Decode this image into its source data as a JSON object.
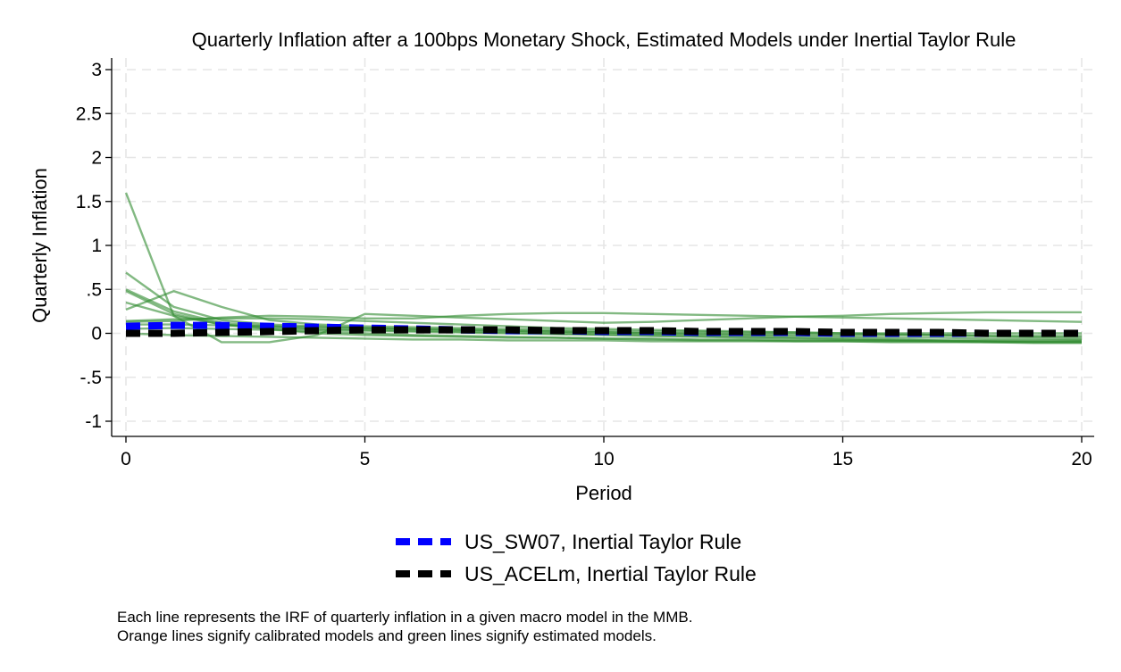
{
  "chart_data": {
    "type": "line",
    "title": "Quarterly Inflation after a 100bps Monetary Shock, Estimated Models under Inertial Taylor Rule",
    "xlabel": "Period",
    "ylabel": "Quarterly Inflation",
    "xlim": [
      0,
      20
    ],
    "ylim": [
      -1,
      3
    ],
    "x_ticks": [
      0,
      5,
      10,
      15,
      20
    ],
    "x_tick_labels": [
      "0",
      "5",
      "10",
      "15",
      "20"
    ],
    "y_ticks": [
      -1,
      -0.5,
      0,
      0.5,
      1,
      1.5,
      2,
      2.5,
      3
    ],
    "y_tick_labels": [
      "-1",
      "-.5",
      "0",
      ".5",
      "1",
      "1.5",
      "2",
      "2.5",
      "3"
    ],
    "grid": true,
    "legend_position": "bottom",
    "x": [
      0,
      1,
      2,
      3,
      4,
      5,
      6,
      7,
      8,
      9,
      10,
      11,
      12,
      13,
      14,
      15,
      16,
      17,
      18,
      19,
      20
    ],
    "background_series_color": "#2e8b2e",
    "background_series": [
      {
        "values": [
          1.6,
          0.2,
          0.1,
          0.05,
          0.0,
          -0.02,
          -0.03,
          -0.04,
          -0.05,
          -0.05,
          -0.06,
          -0.06,
          -0.07,
          -0.07,
          -0.08,
          -0.08,
          -0.08,
          -0.08,
          -0.08,
          -0.08,
          -0.08
        ]
      },
      {
        "values": [
          0.69,
          0.3,
          0.15,
          0.1,
          0.08,
          0.06,
          0.05,
          0.04,
          0.03,
          0.02,
          0.01,
          0.0,
          0.0,
          -0.01,
          -0.01,
          -0.02,
          -0.02,
          -0.02,
          -0.03,
          -0.03,
          -0.03
        ]
      },
      {
        "values": [
          0.5,
          0.25,
          0.12,
          0.08,
          0.05,
          0.04,
          0.03,
          0.02,
          0.01,
          0.0,
          -0.01,
          -0.02,
          -0.03,
          -0.04,
          -0.05,
          -0.06,
          -0.07,
          -0.08,
          -0.09,
          -0.1,
          -0.1
        ]
      },
      {
        "values": [
          0.48,
          0.22,
          0.1,
          0.06,
          0.04,
          0.03,
          0.02,
          0.01,
          0.0,
          -0.01,
          -0.02,
          -0.03,
          -0.04,
          -0.05,
          -0.06,
          -0.07,
          -0.08,
          -0.09,
          -0.1,
          -0.11,
          -0.11
        ]
      },
      {
        "values": [
          0.27,
          0.48,
          0.3,
          0.15,
          0.1,
          0.08,
          0.07,
          0.06,
          0.05,
          0.04,
          0.03,
          0.02,
          0.02,
          0.01,
          0.01,
          0.0,
          0.0,
          0.0,
          0.0,
          0.0,
          0.0
        ]
      },
      {
        "values": [
          0.35,
          0.2,
          -0.1,
          -0.1,
          -0.02,
          0.22,
          0.2,
          0.18,
          0.16,
          0.14,
          0.12,
          0.13,
          0.15,
          0.17,
          0.19,
          0.2,
          0.22,
          0.23,
          0.24,
          0.24,
          0.24
        ]
      },
      {
        "values": [
          0.13,
          0.14,
          0.18,
          0.2,
          0.19,
          0.17,
          0.17,
          0.2,
          0.22,
          0.23,
          0.23,
          0.22,
          0.21,
          0.2,
          0.19,
          0.18,
          0.17,
          0.16,
          0.15,
          0.14,
          0.13
        ]
      },
      {
        "values": [
          0.14,
          0.16,
          0.17,
          0.17,
          0.16,
          0.14,
          0.12,
          0.1,
          0.08,
          0.06,
          0.05,
          0.04,
          0.03,
          0.02,
          0.01,
          0.0,
          -0.01,
          -0.02,
          -0.03,
          -0.04,
          -0.05
        ]
      },
      {
        "values": [
          0.1,
          0.1,
          0.09,
          0.08,
          0.07,
          0.06,
          0.05,
          0.04,
          0.03,
          0.02,
          0.01,
          0.0,
          -0.01,
          -0.02,
          -0.03,
          -0.04,
          -0.05,
          -0.05,
          -0.06,
          -0.06,
          -0.07
        ]
      },
      {
        "values": [
          0.05,
          0.06,
          0.05,
          0.04,
          0.02,
          0.0,
          -0.02,
          -0.03,
          -0.04,
          -0.05,
          -0.06,
          -0.07,
          -0.08,
          -0.08,
          -0.09,
          -0.09,
          -0.1,
          -0.1,
          -0.1,
          -0.1,
          -0.1
        ]
      },
      {
        "values": [
          0.0,
          -0.02,
          -0.03,
          -0.04,
          -0.05,
          -0.06,
          -0.07,
          -0.07,
          -0.08,
          -0.08,
          -0.08,
          -0.09,
          -0.09,
          -0.09,
          -0.09,
          -0.09,
          -0.09,
          -0.09,
          -0.09,
          -0.09,
          -0.09
        ]
      }
    ],
    "series": [
      {
        "name": "US_SW07, Inertial Taylor Rule",
        "color": "#0000ff",
        "dash": "dashed",
        "values": [
          0.08,
          0.09,
          0.09,
          0.08,
          0.07,
          0.06,
          0.05,
          0.04,
          0.03,
          0.03,
          0.02,
          0.02,
          0.01,
          0.01,
          0.01,
          0.0,
          0.0,
          0.0,
          0.0,
          0.0,
          0.0
        ]
      },
      {
        "name": "US_ACELm, Inertial Taylor Rule",
        "color": "#000000",
        "dash": "dashed",
        "values": [
          0.0,
          0.0,
          0.01,
          0.02,
          0.03,
          0.04,
          0.04,
          0.04,
          0.04,
          0.03,
          0.03,
          0.03,
          0.02,
          0.02,
          0.02,
          0.01,
          0.01,
          0.01,
          0.0,
          0.0,
          0.0
        ]
      }
    ],
    "note_lines": [
      "Each line represents the IRF of quarterly inflation in a given macro model in the MMB.",
      "Orange lines signify calibrated models and green lines signify estimated models."
    ]
  }
}
